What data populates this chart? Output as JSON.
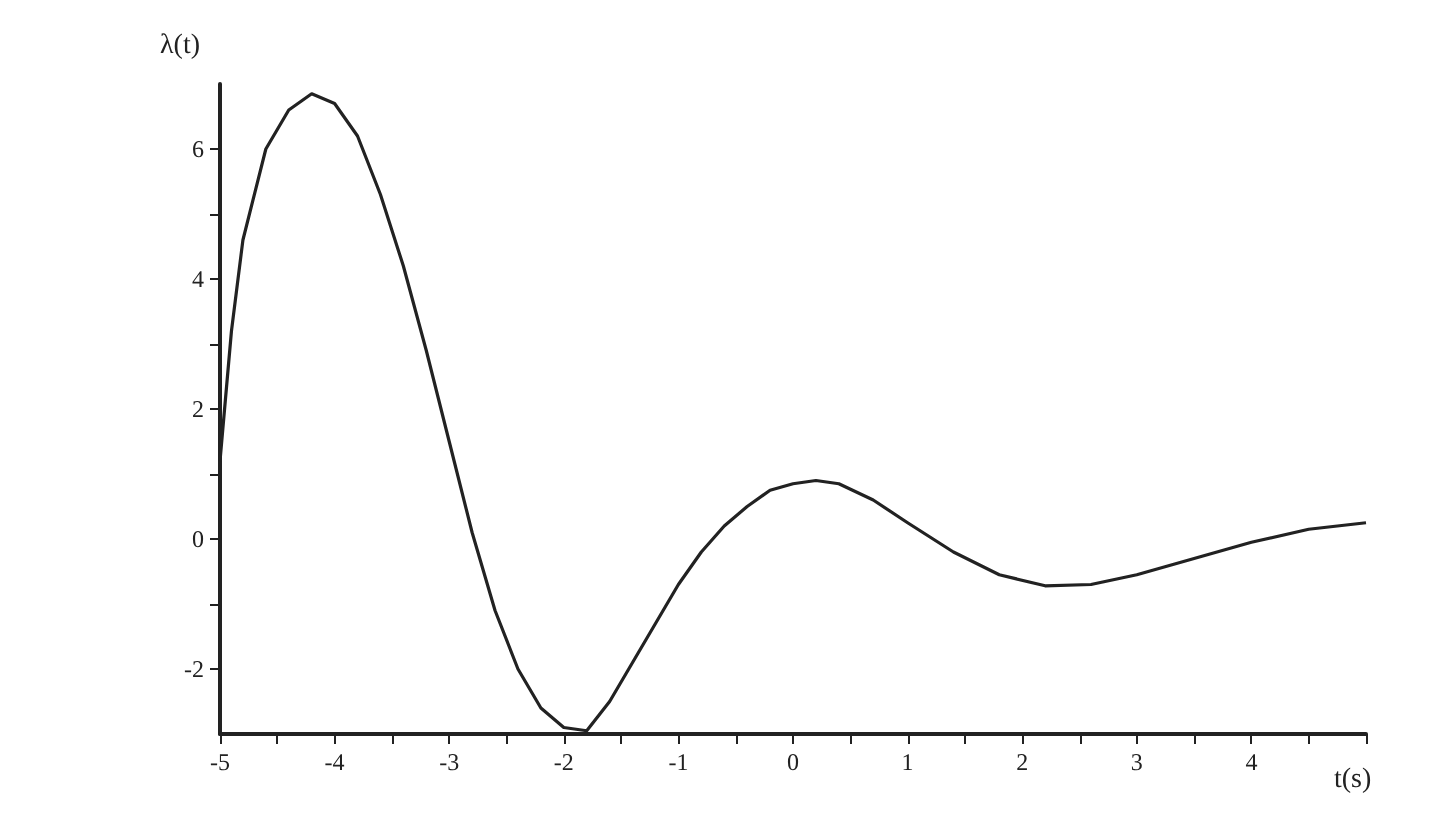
{
  "chart_data": {
    "type": "line",
    "xlabel": "t(s)",
    "ylabel": "λ(t)",
    "x": [
      -5,
      -4.9,
      -4.8,
      -4.6,
      -4.4,
      -4.2,
      -4.0,
      -3.8,
      -3.6,
      -3.4,
      -3.2,
      -3.0,
      -2.8,
      -2.6,
      -2.4,
      -2.2,
      -2.0,
      -1.8,
      -1.6,
      -1.4,
      -1.2,
      -1.0,
      -0.8,
      -0.6,
      -0.4,
      -0.2,
      0,
      0.2,
      0.4,
      0.7,
      1.0,
      1.4,
      1.8,
      2.2,
      2.6,
      3.0,
      3.5,
      4.0,
      4.5,
      5.0
    ],
    "series": [
      {
        "color": "#222222",
        "values": [
          1.2,
          3.2,
          4.6,
          6.0,
          6.6,
          6.85,
          6.7,
          6.2,
          5.3,
          4.2,
          2.9,
          1.5,
          0.1,
          -1.1,
          -2.0,
          -2.6,
          -2.9,
          -2.95,
          -2.5,
          -1.9,
          -1.3,
          -0.7,
          -0.2,
          0.2,
          0.5,
          0.75,
          0.85,
          0.9,
          0.85,
          0.6,
          0.25,
          -0.2,
          -0.55,
          -0.72,
          -0.7,
          -0.55,
          -0.3,
          -0.05,
          0.15,
          0.25
        ]
      }
    ],
    "xlim": [
      -5,
      5
    ],
    "xticks": [
      -5,
      {
        "value": -4.5,
        "label": null
      },
      -4,
      {
        "value": -3.5,
        "label": null
      },
      -3,
      {
        "value": -2.5,
        "label": null
      },
      -2,
      {
        "value": -1.5,
        "label": null
      },
      -1,
      {
        "value": -0.5,
        "label": null
      },
      0,
      {
        "value": 0.5,
        "label": null
      },
      1,
      {
        "value": 1.5,
        "label": null
      },
      2,
      {
        "value": 2.5,
        "label": null
      },
      3,
      {
        "value": 3.5,
        "label": null
      },
      4,
      {
        "value": 4.5,
        "label": null
      },
      {
        "value": 5,
        "label": null
      }
    ],
    "ylim": [
      -3,
      7
    ],
    "yticks": [
      -2,
      {
        "value": -1,
        "label": null
      },
      0,
      {
        "value": 1,
        "label": null
      },
      2,
      {
        "value": 3,
        "label": null
      },
      4,
      {
        "value": 5,
        "label": null
      },
      6
    ],
    "grid": false,
    "marker": "none",
    "line_style": "solid"
  }
}
